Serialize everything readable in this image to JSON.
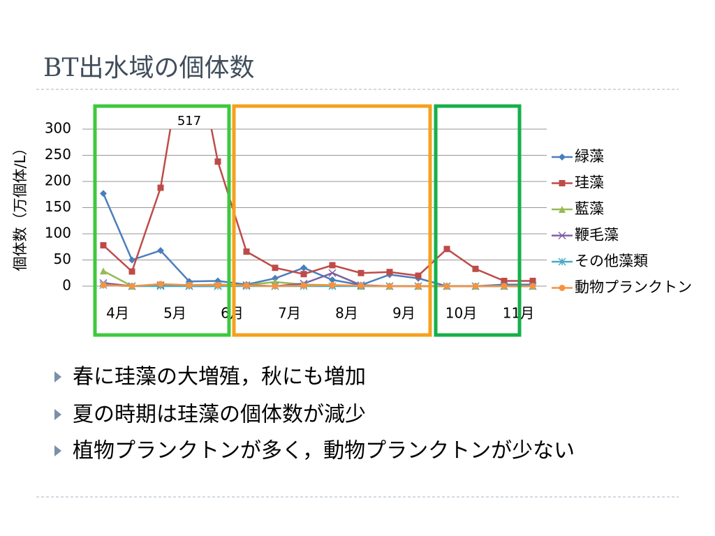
{
  "title": "BT出水域の個体数",
  "bullets": [
    "春に珪藻の大増殖，秋にも増加",
    "夏の時期は珪藻の個体数が減少",
    "植物プランクトンが多く，動物プランクトンが少ない"
  ],
  "chart_data": {
    "type": "line",
    "ylabel": "個体数（万個体/L）",
    "categories": [
      "4月",
      null,
      "5月",
      null,
      "6月",
      null,
      "7月",
      null,
      "8月",
      null,
      "9月",
      null,
      "10月",
      null,
      "11月",
      null
    ],
    "series": [
      {
        "name": "緑藻",
        "color": "#4a7ebb",
        "marker": "diamond",
        "values": [
          177,
          50,
          68,
          9,
          10,
          3,
          15,
          35,
          12,
          2,
          22,
          15,
          0,
          0,
          3,
          3
        ]
      },
      {
        "name": "珪藻",
        "color": "#be4b48",
        "marker": "square",
        "values": [
          78,
          28,
          188,
          517,
          238,
          66,
          35,
          23,
          40,
          25,
          27,
          20,
          71,
          33,
          10,
          10
        ]
      },
      {
        "name": "藍藻",
        "color": "#98b954",
        "marker": "triangle",
        "values": [
          29,
          0,
          3,
          2,
          3,
          2,
          8,
          3,
          2,
          0,
          0,
          0,
          0,
          0,
          0,
          0
        ]
      },
      {
        "name": "鞭毛藻",
        "color": "#7d60a0",
        "marker": "x",
        "values": [
          6,
          0,
          2,
          0,
          0,
          2,
          0,
          5,
          25,
          2,
          0,
          0,
          0,
          0,
          0,
          0
        ]
      },
      {
        "name": "その他藻類",
        "color": "#46aac5",
        "marker": "star",
        "values": [
          2,
          0,
          0,
          0,
          0,
          0,
          0,
          0,
          0,
          0,
          0,
          0,
          0,
          0,
          0,
          0
        ]
      },
      {
        "name": "動物プランクトン",
        "color": "#f69240",
        "marker": "circle",
        "values": [
          2,
          0,
          4,
          2,
          2,
          1,
          0,
          1,
          2,
          1,
          0,
          0,
          0,
          0,
          0,
          0
        ]
      }
    ],
    "data_label_series": 1,
    "data_label_index": 3,
    "ylim": [
      0,
      300
    ],
    "yticks": [
      0,
      50,
      100,
      150,
      200,
      250,
      300
    ],
    "grid": true
  }
}
